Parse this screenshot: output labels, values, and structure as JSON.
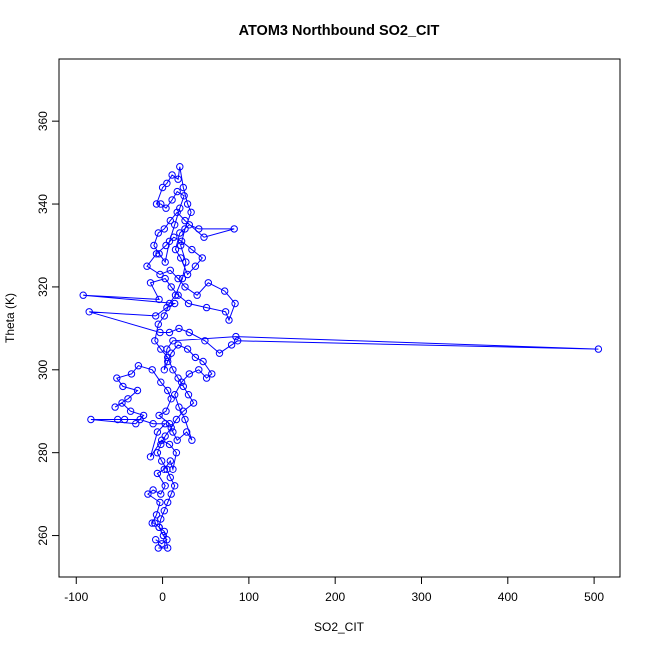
{
  "chart_data": {
    "type": "scatter",
    "title": "ATOM3 Northbound SO2_CIT",
    "xlabel": "SO2_CIT",
    "ylabel": "Theta (K)",
    "xlim": [
      -120,
      530
    ],
    "ylim": [
      250,
      375
    ],
    "xticks": [
      -100,
      0,
      100,
      200,
      300,
      400,
      500
    ],
    "yticks": [
      260,
      280,
      300,
      320,
      340,
      360
    ],
    "grid": false,
    "series_color": "#0000ff",
    "series": [
      {
        "style": "points-connected",
        "points": [
          [
            -5,
            257
          ],
          [
            6,
            257
          ],
          [
            2,
            261
          ],
          [
            -4,
            262
          ],
          [
            -9,
            263
          ],
          [
            -12,
            263
          ],
          [
            -7,
            265
          ],
          [
            -3,
            268
          ],
          [
            -17,
            270
          ],
          [
            -11,
            271
          ],
          [
            -2,
            270
          ],
          [
            3,
            272
          ],
          [
            -6,
            275
          ],
          [
            2,
            276
          ],
          [
            9,
            278
          ],
          [
            12,
            276
          ],
          [
            16,
            280
          ],
          [
            8,
            282
          ],
          [
            -1,
            283
          ],
          [
            -14,
            279
          ],
          [
            -6,
            285
          ],
          [
            3,
            287
          ],
          [
            -11,
            287
          ],
          [
            -26,
            288
          ],
          [
            -44,
            288
          ],
          [
            -52,
            288
          ],
          [
            -83,
            288
          ],
          [
            -31,
            287
          ],
          [
            -22,
            289
          ],
          [
            -37,
            290
          ],
          [
            -47,
            292
          ],
          [
            -55,
            291
          ],
          [
            -40,
            293
          ],
          [
            -29,
            295
          ],
          [
            -46,
            296
          ],
          [
            -53,
            298
          ],
          [
            -36,
            299
          ],
          [
            -28,
            301
          ],
          [
            -12,
            300
          ],
          [
            -2,
            297
          ],
          [
            6,
            295
          ],
          [
            10,
            293
          ],
          [
            4,
            290
          ],
          [
            -4,
            289
          ],
          [
            8,
            287
          ],
          [
            12,
            285
          ],
          [
            17,
            283
          ],
          [
            28,
            285
          ],
          [
            34,
            283
          ],
          [
            26,
            288
          ],
          [
            19,
            291
          ],
          [
            14,
            294
          ],
          [
            22,
            297
          ],
          [
            31,
            299
          ],
          [
            42,
            300
          ],
          [
            51,
            298
          ],
          [
            57,
            299
          ],
          [
            47,
            302
          ],
          [
            38,
            303
          ],
          [
            29,
            305
          ],
          [
            18,
            306
          ],
          [
            10,
            304
          ],
          [
            6,
            302
          ],
          [
            2,
            300
          ],
          [
            5,
            305
          ],
          [
            12,
            307
          ],
          [
            85,
            308
          ],
          [
            505,
            305
          ],
          [
            87,
            307
          ],
          [
            80,
            306
          ],
          [
            66,
            304
          ],
          [
            49,
            307
          ],
          [
            31,
            309
          ],
          [
            19,
            310
          ],
          [
            8,
            309
          ],
          [
            -3,
            309
          ],
          [
            -85,
            314
          ],
          [
            -8,
            313
          ],
          [
            5,
            315
          ],
          [
            14,
            316
          ],
          [
            -92,
            318
          ],
          [
            -4,
            317
          ],
          [
            -14,
            321
          ],
          [
            3,
            322
          ],
          [
            10,
            320
          ],
          [
            18,
            318
          ],
          [
            30,
            316
          ],
          [
            51,
            315
          ],
          [
            73,
            314
          ],
          [
            77,
            312
          ],
          [
            84,
            316
          ],
          [
            72,
            319
          ],
          [
            53,
            321
          ],
          [
            40,
            318
          ],
          [
            26,
            320
          ],
          [
            18,
            322
          ],
          [
            9,
            324
          ],
          [
            -3,
            323
          ],
          [
            -18,
            325
          ],
          [
            -7,
            328
          ],
          [
            4,
            330
          ],
          [
            13,
            332
          ],
          [
            22,
            331
          ],
          [
            34,
            329
          ],
          [
            46,
            327
          ],
          [
            38,
            325
          ],
          [
            29,
            323
          ],
          [
            21,
            327
          ],
          [
            15,
            329
          ],
          [
            20,
            333
          ],
          [
            31,
            335
          ],
          [
            42,
            334
          ],
          [
            83,
            334
          ],
          [
            48,
            332
          ],
          [
            26,
            336
          ],
          [
            17,
            338
          ],
          [
            9,
            336
          ],
          [
            2,
            334
          ],
          [
            -5,
            333
          ],
          [
            -10,
            330
          ],
          [
            -4,
            328
          ],
          [
            3,
            326
          ],
          [
            8,
            331
          ],
          [
            14,
            335
          ],
          [
            20,
            339
          ],
          [
            25,
            342
          ],
          [
            17,
            343
          ],
          [
            11,
            341
          ],
          [
            4,
            339
          ],
          [
            -2,
            340
          ],
          [
            -7,
            340
          ],
          [
            0,
            344
          ],
          [
            5,
            345
          ],
          [
            11,
            347
          ],
          [
            18,
            346
          ],
          [
            20,
            349
          ],
          [
            24,
            344
          ],
          [
            29,
            340
          ],
          [
            33,
            338
          ],
          [
            26,
            334
          ],
          [
            21,
            330
          ],
          [
            27,
            326
          ],
          [
            23,
            322
          ],
          [
            15,
            318
          ],
          [
            8,
            316
          ],
          [
            2,
            313
          ],
          [
            -5,
            311
          ],
          [
            -9,
            307
          ],
          [
            -2,
            305
          ],
          [
            6,
            303
          ],
          [
            12,
            300
          ],
          [
            18,
            298
          ],
          [
            24,
            296
          ],
          [
            30,
            294
          ],
          [
            36,
            292
          ],
          [
            24,
            290
          ],
          [
            16,
            288
          ],
          [
            10,
            286
          ],
          [
            3,
            284
          ],
          [
            -2,
            282
          ],
          [
            -6,
            280
          ],
          [
            -1,
            278
          ],
          [
            5,
            276
          ],
          [
            9,
            274
          ],
          [
            14,
            272
          ],
          [
            10,
            270
          ],
          [
            6,
            268
          ],
          [
            2,
            266
          ],
          [
            -2,
            264
          ],
          [
            -4,
            262
          ],
          [
            1,
            260
          ],
          [
            5,
            259
          ],
          [
            -1,
            258
          ],
          [
            -8,
            259
          ]
        ]
      }
    ]
  }
}
